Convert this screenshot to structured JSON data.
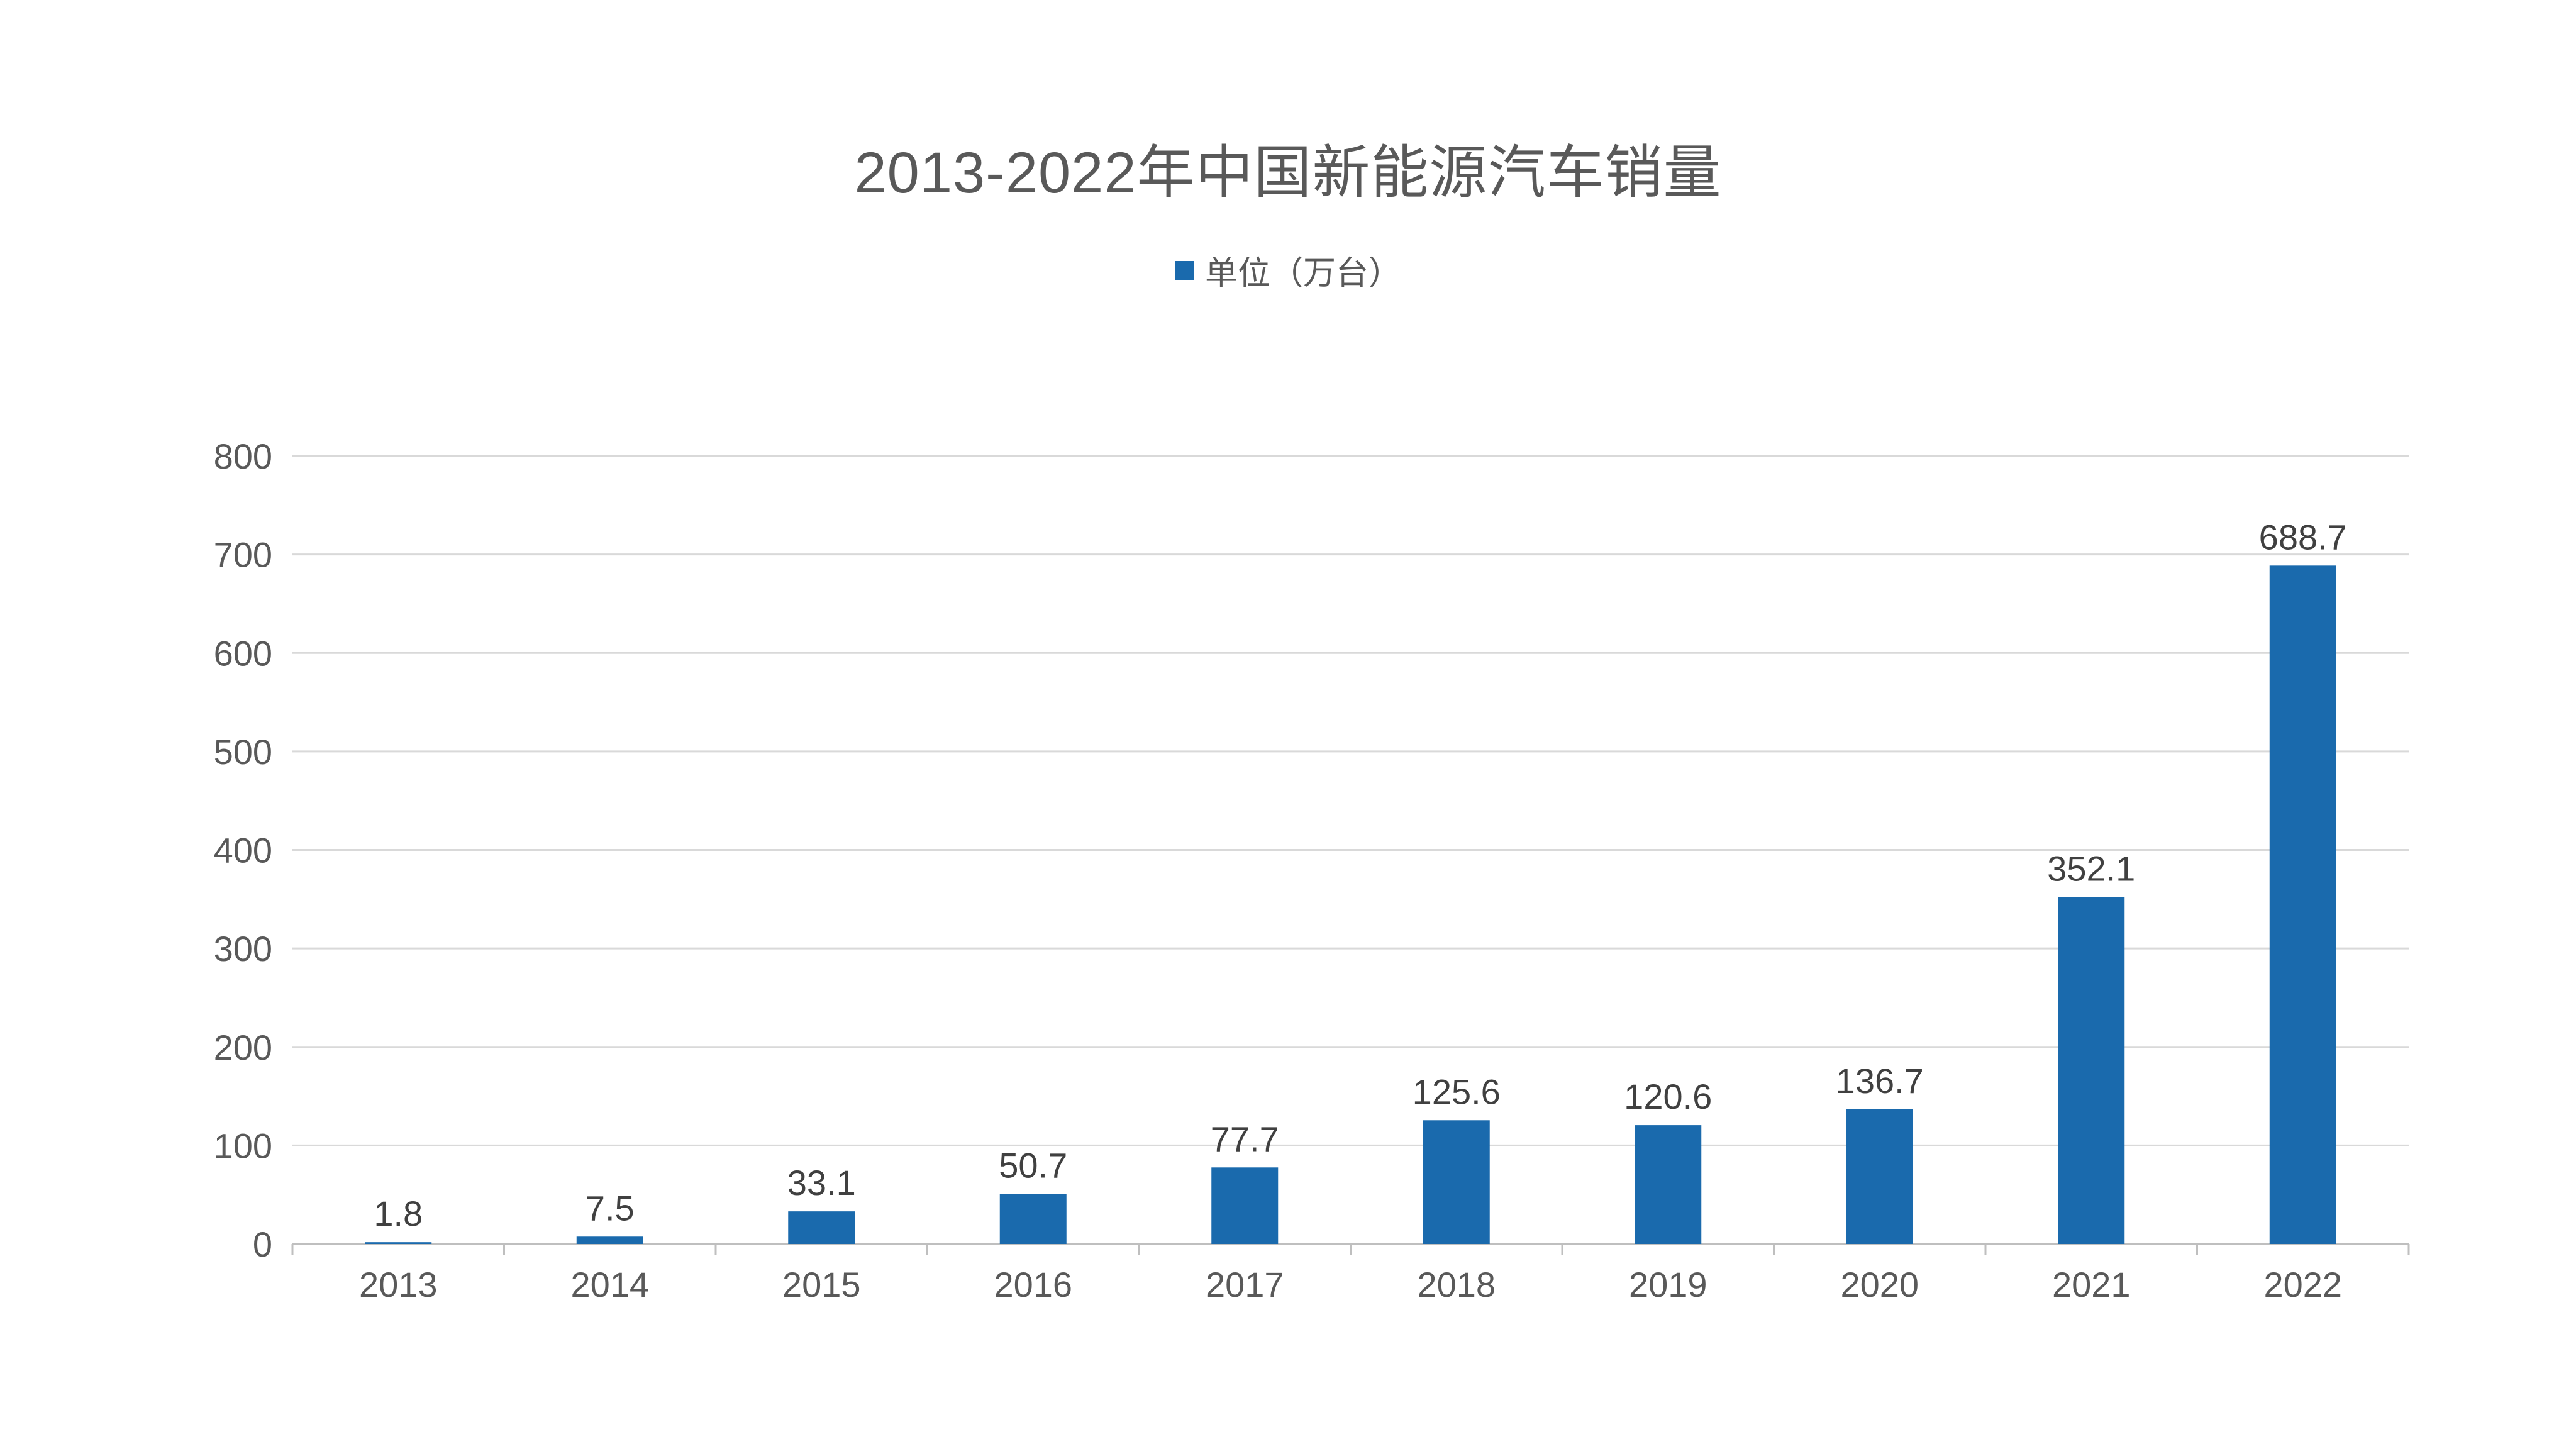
{
  "chart_data": {
    "type": "bar",
    "title": "2013-2022年中国新能源汽车销量",
    "legend": {
      "position": "top",
      "entries": [
        "单位（万台）"
      ]
    },
    "categories": [
      "2013",
      "2014",
      "2015",
      "2016",
      "2017",
      "2018",
      "2019",
      "2020",
      "2021",
      "2022"
    ],
    "series": [
      {
        "name": "单位（万台）",
        "values": [
          1.8,
          7.5,
          33.1,
          50.7,
          77.7,
          125.6,
          120.6,
          136.7,
          352.1,
          688.7
        ],
        "data_labels": [
          "1.8",
          "7.5",
          "33.1",
          "50.7",
          "77.7",
          "125.6",
          "120.6",
          "136.7",
          "352.1",
          "688.7"
        ]
      }
    ],
    "ylim": [
      0,
      800
    ],
    "yticks": [
      0,
      100,
      200,
      300,
      400,
      500,
      600,
      700,
      800
    ],
    "ytick_labels": [
      "0",
      "100",
      "200",
      "300",
      "400",
      "500",
      "600",
      "700",
      "800"
    ],
    "grid": true,
    "xlabel": "",
    "ylabel": ""
  },
  "colors": {
    "bar": "#1a6aad",
    "gridline": "#d9d9d9",
    "axis": "#bfbfbf",
    "text": "#595959"
  }
}
